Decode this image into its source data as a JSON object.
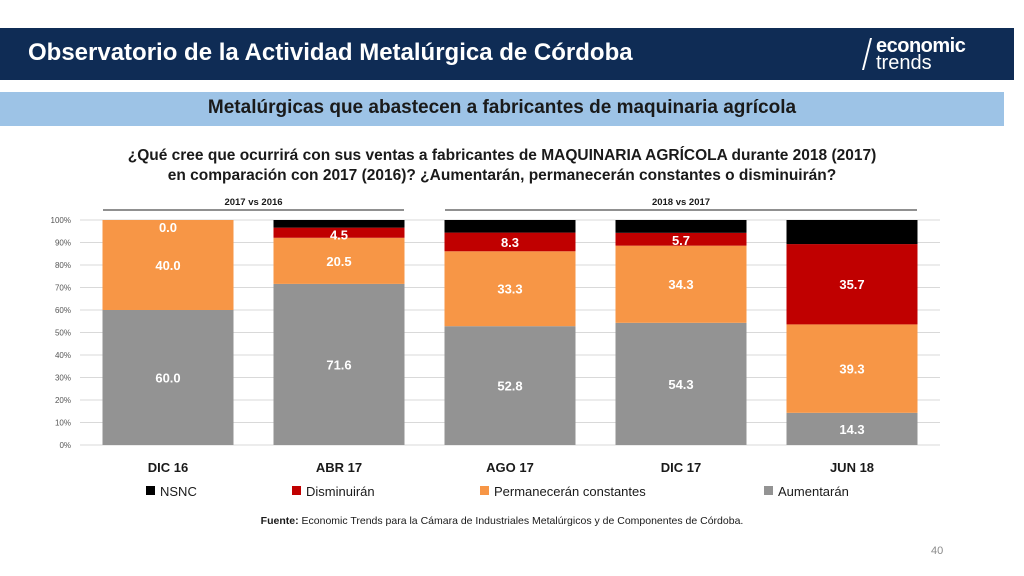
{
  "header": {
    "title": "Observatorio de la Actividad Metalúrgica de Córdoba",
    "logo_line1": "economic",
    "logo_line2": "trends"
  },
  "subtitle": "Metalúrgicas que abastecen a fabricantes de maquinaria agrícola",
  "question_line1": "¿Qué cree que ocurrirá con sus ventas a fabricantes de MAQUINARIA AGRÍCOLA durante 2018 (2017)",
  "question_line2": "en comparación con 2017 (2016)? ¿Aumentarán, permanecerán constantes o disminuirán?",
  "source_label": "Fuente:",
  "source_text": " Economic Trends para la Cámara de Industriales Metalúrgicos y de Componentes de Córdoba.",
  "page_number": "40",
  "chart_data": {
    "type": "bar",
    "stacked": true,
    "categories": [
      "DIC 16",
      "ABR 17",
      "AGO 17",
      "DIC 17",
      "JUN 18"
    ],
    "groups": [
      {
        "label": "2017 vs 2016",
        "categories": [
          "DIC 16",
          "ABR 17"
        ]
      },
      {
        "label": "2018  vs 2017",
        "categories": [
          "AGO 17",
          "DIC 17",
          "JUN 18"
        ]
      }
    ],
    "y_ticks": [
      "0%",
      "10%",
      "20%",
      "30%",
      "40%",
      "50%",
      "60%",
      "70%",
      "80%",
      "90%",
      "100%"
    ],
    "ylim": [
      0,
      100
    ],
    "grid": true,
    "legend_position": "bottom",
    "series": [
      {
        "name": "Aumentarán",
        "color": "#939393",
        "values": [
          60.0,
          71.6,
          52.8,
          54.3,
          14.3
        ]
      },
      {
        "name": "Permanecerán constantes",
        "color": "#f79646",
        "values": [
          40.0,
          20.5,
          33.3,
          34.3,
          39.3
        ]
      },
      {
        "name": "Disminuirán",
        "color": "#c00000",
        "values": [
          0.0,
          4.5,
          8.3,
          5.7,
          35.7
        ]
      },
      {
        "name": "NSNC",
        "color": "#000000",
        "values": [
          0.0,
          3.4,
          5.6,
          5.7,
          10.7
        ]
      }
    ],
    "data_labels": [
      [
        "60.0",
        "71.6",
        "52.8",
        "54.3",
        "14.3"
      ],
      [
        "40.0",
        "20.5",
        "33.3",
        "34.3",
        "39.3"
      ],
      [
        "0.0",
        "4.5",
        "8.3",
        "5.7",
        "35.7"
      ],
      [
        "",
        "",
        "",
        "",
        ""
      ]
    ],
    "legend_order": [
      "NSNC",
      "Disminuirán",
      "Permanecerán constantes",
      "Aumentarán"
    ]
  },
  "colors": {
    "header_bg": "#0f2c55",
    "subtitle_bg": "#9dc3e6",
    "grid": "#d9d9d9"
  }
}
